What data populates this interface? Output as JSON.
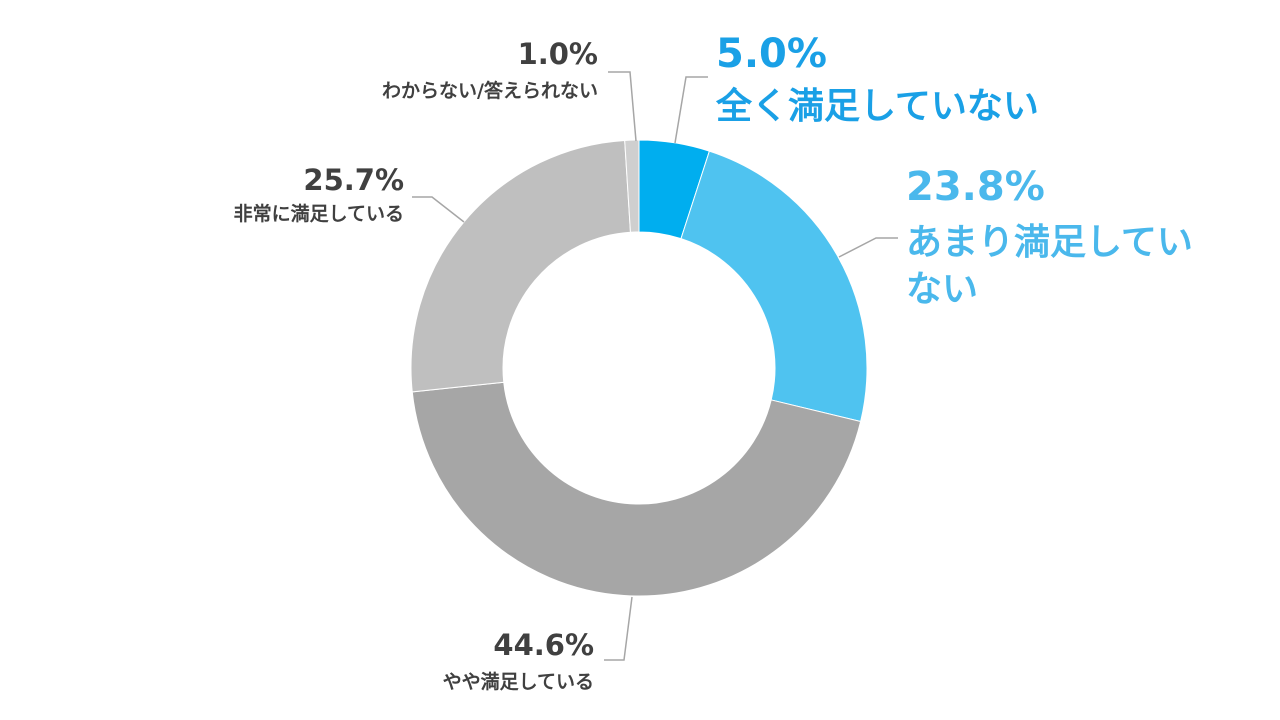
{
  "chart_data": {
    "type": "pie",
    "variant": "donut",
    "slices": [
      {
        "label": "全く満足していない",
        "value": 5.0,
        "value_text": "5.0%",
        "color": "#00AEEF",
        "emphasis": true
      },
      {
        "label": "あまり満足していない",
        "value": 23.8,
        "value_text": "23.8%",
        "color": "#4FC3F0",
        "emphasis": true
      },
      {
        "label": "やや満足している",
        "value": 44.6,
        "value_text": "44.6%",
        "color": "#A6A6A6",
        "emphasis": false
      },
      {
        "label": "非常に満足している",
        "value": 25.7,
        "value_text": "25.7%",
        "color": "#BFBFBF",
        "emphasis": false
      },
      {
        "label": "わからない/答えられない",
        "value": 1.0,
        "value_text": "1.0%",
        "color": "#CFCFCF",
        "emphasis": false
      }
    ],
    "start": "top",
    "direction": "clockwise",
    "colors": {
      "emphasis_text": "#1AA0E6",
      "emphasis_text_2": "#4AB8EC",
      "gray_text": "#404040",
      "leader_line": "#A6A6A6"
    }
  }
}
